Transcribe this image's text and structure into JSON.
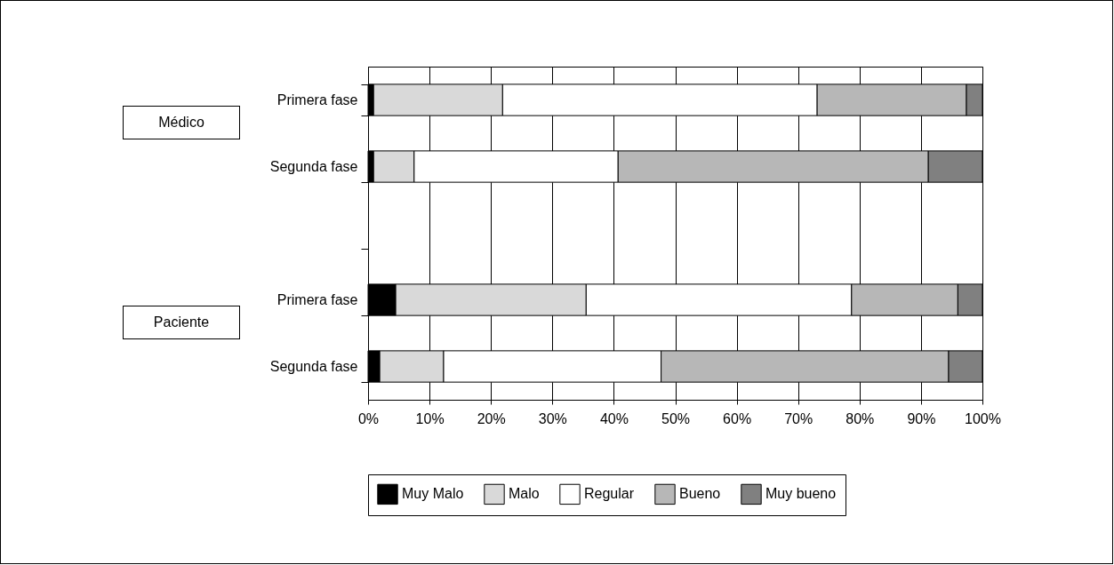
{
  "chart_data": {
    "type": "bar",
    "orientation": "horizontal",
    "stacked": true,
    "categories": [
      "Primera fase",
      "Segunda fase",
      null,
      "Primera fase",
      "Segunda fase"
    ],
    "series": [
      {
        "name": "Muy Malo",
        "color": "#000000",
        "values": [
          0.9,
          0.9,
          null,
          4.5,
          1.9
        ]
      },
      {
        "name": "Malo",
        "color": "#d9d9d9",
        "values": [
          21.0,
          6.6,
          null,
          31.0,
          10.4
        ]
      },
      {
        "name": "Regular",
        "color": "#ffffff",
        "values": [
          51.2,
          33.2,
          null,
          43.2,
          35.4
        ]
      },
      {
        "name": "Bueno",
        "color": "#b7b7b7",
        "values": [
          24.3,
          50.5,
          null,
          17.3,
          46.8
        ]
      },
      {
        "name": "Muy bueno",
        "color": "#808080",
        "values": [
          2.6,
          8.8,
          null,
          4.0,
          5.5
        ]
      }
    ],
    "xlim": [
      0,
      100
    ],
    "xticks": [
      {
        "value": 0,
        "label": "0%"
      },
      {
        "value": 10,
        "label": "10%"
      },
      {
        "value": 20,
        "label": "20%"
      },
      {
        "value": 30,
        "label": "30%"
      },
      {
        "value": 40,
        "label": "40%"
      },
      {
        "value": 50,
        "label": "50%"
      },
      {
        "value": 60,
        "label": "60%"
      },
      {
        "value": 70,
        "label": "70%"
      },
      {
        "value": 80,
        "label": "80%"
      },
      {
        "value": 90,
        "label": "90%"
      },
      {
        "value": 100,
        "label": "100%"
      }
    ],
    "annotations": [
      "Médico",
      "Paciente"
    ],
    "grid": "x",
    "legend": "bottom"
  }
}
